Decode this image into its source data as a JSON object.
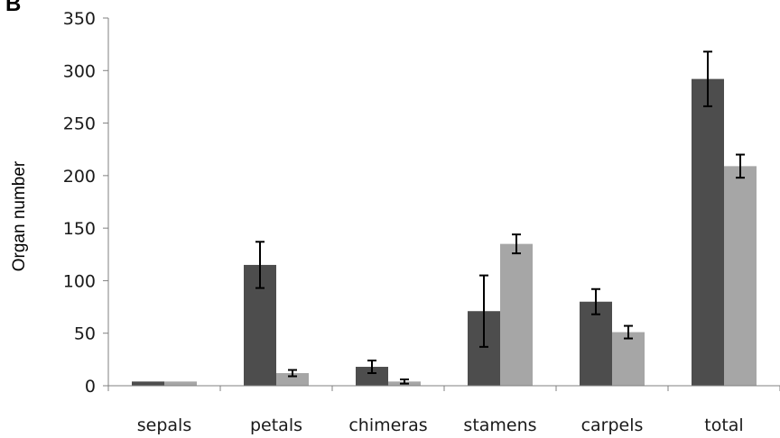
{
  "panel_label": "B",
  "chart_data": {
    "type": "bar",
    "title": "",
    "xlabel": "",
    "ylabel": "Organ number",
    "ylim": [
      0,
      350
    ],
    "yticks": [
      "0",
      "50",
      "100",
      "150",
      "200",
      "250",
      "300",
      "350"
    ],
    "grid": false,
    "legend": "none",
    "categories": [
      "sepals",
      "petals",
      "chimeras",
      "stamens",
      "carpels",
      "total"
    ],
    "series": [
      {
        "color": "#4d4d4d",
        "values": [
          4,
          115,
          18,
          71,
          80,
          292
        ],
        "error": [
          0,
          22,
          6,
          34,
          12,
          26
        ]
      },
      {
        "color": "#a6a6a6",
        "values": [
          4,
          12,
          4,
          135,
          51,
          209
        ],
        "error": [
          0,
          3,
          2,
          9,
          6,
          11
        ]
      }
    ]
  }
}
